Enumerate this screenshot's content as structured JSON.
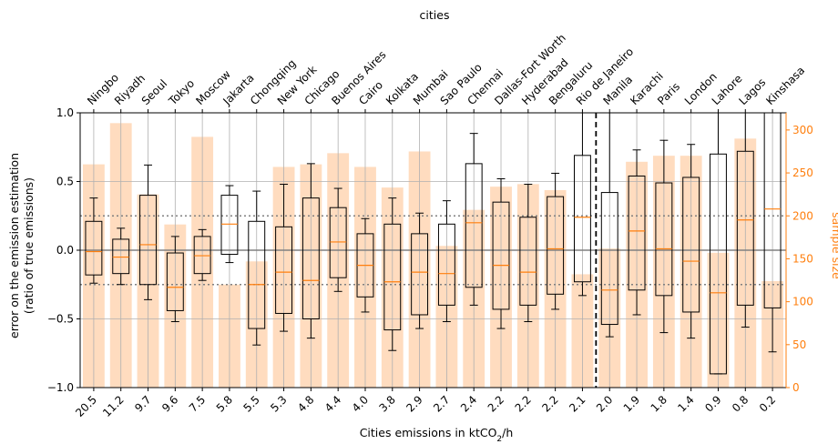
{
  "chart_data": {
    "type": "boxplot",
    "title": "cities",
    "xlabel": "Cities emissions in ktCO₂/h",
    "xlabel_parts": {
      "before": "Cities emissions in ktCO",
      "sub": "2",
      "after": "/h"
    },
    "ylabel_line1": "error on the emission estimation",
    "ylabel_line2": "(ratio of true emissions)",
    "y2label": "sample size",
    "ylim": [
      -1.0,
      1.0
    ],
    "yticks": [
      "1.0",
      "0.5",
      "0.0",
      "−0.5",
      "−1.0"
    ],
    "ytick_values": [
      1.0,
      0.5,
      0.0,
      -0.5,
      -1.0
    ],
    "y2lim": [
      0,
      320
    ],
    "y2ticks": [
      "0",
      "50",
      "100",
      "150",
      "200",
      "250",
      "300"
    ],
    "y2tick_values": [
      0,
      50,
      100,
      150,
      200,
      250,
      300
    ],
    "reference_lines": {
      "solid": 0.0,
      "dotted": [
        0.25,
        -0.25
      ]
    },
    "split_after_index": 19,
    "grid": true,
    "colors": {
      "box": "#000000",
      "median": "#ff7f0e",
      "bar": "#ffdcbf",
      "right_axis": "#ff7f0e",
      "grid": "#b0b0b0",
      "ref": "#808080"
    },
    "cities": [
      "Ningbo",
      "Riyadh",
      "Seoul",
      "Tokyo",
      "Moscow",
      "Jakarta",
      "Chongqing",
      "New York",
      "Chicago",
      "Buenos Aires",
      "Cairo",
      "Kolkata",
      "Mumbai",
      "Sao Paulo",
      "Chennai",
      "Dallas-Fort Worth",
      "Hyderabad",
      "Bengaluru",
      "Rio de Janeiro",
      "Manila",
      "Karachi",
      "Paris",
      "London",
      "Lahore",
      "Lagos",
      "Kinshasa"
    ],
    "emissions": [
      "20.5",
      "11.2",
      "9.7",
      "9.6",
      "7.5",
      "5.8",
      "5.5",
      "5.3",
      "4.8",
      "4.4",
      "4.0",
      "3.8",
      "2.9",
      "2.7",
      "2.4",
      "2.2",
      "2.2",
      "2.2",
      "2.1",
      "2.0",
      "1.9",
      "1.8",
      "1.4",
      "0.9",
      "0.8",
      "0.2"
    ],
    "sample_size": [
      260,
      308,
      225,
      190,
      292,
      120,
      147,
      257,
      260,
      273,
      257,
      233,
      275,
      165,
      207,
      234,
      237,
      230,
      132,
      162,
      263,
      270,
      270,
      157,
      290,
      124
    ],
    "boxes": [
      {
        "whislo": -0.24,
        "q1": -0.18,
        "med": -0.01,
        "q3": 0.21,
        "whishi": 0.38
      },
      {
        "whislo": -0.25,
        "q1": -0.17,
        "med": -0.05,
        "q3": 0.08,
        "whishi": 0.16
      },
      {
        "whislo": -0.36,
        "q1": -0.25,
        "med": 0.04,
        "q3": 0.4,
        "whishi": 0.62
      },
      {
        "whislo": -0.52,
        "q1": -0.44,
        "med": -0.27,
        "q3": -0.02,
        "whishi": 0.1
      },
      {
        "whislo": -0.22,
        "q1": -0.17,
        "med": -0.04,
        "q3": 0.1,
        "whishi": 0.15
      },
      {
        "whislo": -0.09,
        "q1": -0.03,
        "med": 0.19,
        "q3": 0.4,
        "whishi": 0.47
      },
      {
        "whislo": -0.69,
        "q1": -0.57,
        "med": -0.25,
        "q3": 0.21,
        "whishi": 0.43
      },
      {
        "whislo": -0.59,
        "q1": -0.46,
        "med": -0.16,
        "q3": 0.17,
        "whishi": 0.48
      },
      {
        "whislo": -0.64,
        "q1": -0.5,
        "med": -0.22,
        "q3": 0.38,
        "whishi": 0.63
      },
      {
        "whislo": -0.3,
        "q1": -0.2,
        "med": 0.06,
        "q3": 0.31,
        "whishi": 0.45
      },
      {
        "whislo": -0.45,
        "q1": -0.34,
        "med": -0.11,
        "q3": 0.12,
        "whishi": 0.23
      },
      {
        "whislo": -0.73,
        "q1": -0.58,
        "med": -0.23,
        "q3": 0.19,
        "whishi": 0.38
      },
      {
        "whislo": -0.57,
        "q1": -0.47,
        "med": -0.16,
        "q3": 0.12,
        "whishi": 0.27
      },
      {
        "whislo": -0.52,
        "q1": -0.4,
        "med": -0.17,
        "q3": 0.19,
        "whishi": 0.36
      },
      {
        "whislo": -0.4,
        "q1": -0.27,
        "med": 0.2,
        "q3": 0.63,
        "whishi": 0.85
      },
      {
        "whislo": -0.57,
        "q1": -0.43,
        "med": -0.11,
        "q3": 0.35,
        "whishi": 0.52
      },
      {
        "whislo": -0.52,
        "q1": -0.4,
        "med": -0.16,
        "q3": 0.24,
        "whishi": 0.48
      },
      {
        "whislo": -0.43,
        "q1": -0.32,
        "med": 0.01,
        "q3": 0.39,
        "whishi": 0.56
      },
      {
        "whislo": -0.33,
        "q1": -0.23,
        "med": 0.24,
        "q3": 0.69,
        "whishi": 1.0
      },
      {
        "whislo": -0.63,
        "q1": -0.54,
        "med": -0.29,
        "q3": 0.42,
        "whishi": 1.0
      },
      {
        "whislo": -0.47,
        "q1": -0.29,
        "med": 0.14,
        "q3": 0.54,
        "whishi": 0.73
      },
      {
        "whislo": -0.6,
        "q1": -0.33,
        "med": 0.01,
        "q3": 0.49,
        "whishi": 0.8
      },
      {
        "whislo": -0.64,
        "q1": -0.45,
        "med": -0.08,
        "q3": 0.53,
        "whishi": 0.77
      },
      {
        "whislo": -0.9,
        "q1": -0.9,
        "med": -0.31,
        "q3": 0.7,
        "whishi": 1.0
      },
      {
        "whislo": -0.56,
        "q1": -0.4,
        "med": 0.22,
        "q3": 0.72,
        "whishi": 1.0
      },
      {
        "whislo": -0.74,
        "q1": -0.42,
        "med": 0.3,
        "q3": 1.0,
        "whishi": 1.0
      }
    ]
  }
}
